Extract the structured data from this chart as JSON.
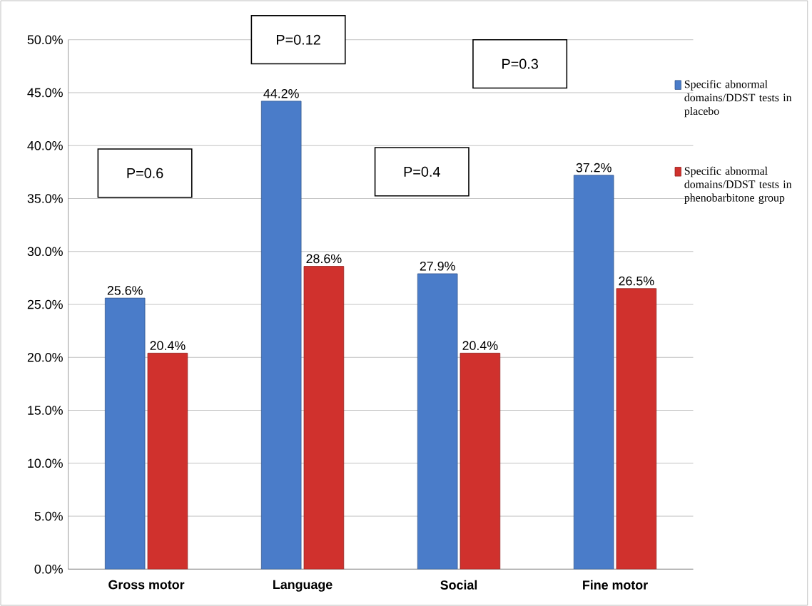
{
  "chart_data": {
    "type": "bar",
    "categories": [
      "Gross motor",
      "Language",
      "Social",
      "Fine motor"
    ],
    "series": [
      {
        "name": "Specific abnormal domains/DDST tests in placebo",
        "color": "#4a7cc9",
        "values": [
          25.6,
          44.2,
          27.9,
          37.2
        ],
        "value_labels": [
          "25.6%",
          "44.2%",
          "27.9%",
          "37.2%"
        ]
      },
      {
        "name": "Specific abnormal domains/DDST tests in phenobarbitone group",
        "color": "#d0312d",
        "values": [
          20.4,
          28.6,
          20.4,
          26.5
        ],
        "value_labels": [
          "20.4%",
          "28.6%",
          "20.4%",
          "26.5%"
        ]
      }
    ],
    "ylim": [
      0,
      50
    ],
    "yticks": [
      {
        "value": 0,
        "label": "0.0%"
      },
      {
        "value": 5,
        "label": "5.0%"
      },
      {
        "value": 10,
        "label": "10.0%"
      },
      {
        "value": 15,
        "label": "15.0%"
      },
      {
        "value": 20,
        "label": "20.0%"
      },
      {
        "value": 25,
        "label": "25.0%"
      },
      {
        "value": 30,
        "label": "30.0%"
      },
      {
        "value": 35,
        "label": "35.0%"
      },
      {
        "value": 40,
        "label": "40.0%"
      },
      {
        "value": 45,
        "label": "45.0%"
      },
      {
        "value": 50,
        "label": "50.0%"
      }
    ],
    "grid": "y",
    "legend": "right",
    "annotations": [
      "P=0.6",
      "P=0.12",
      "P=0.4",
      "P=0.3"
    ]
  }
}
